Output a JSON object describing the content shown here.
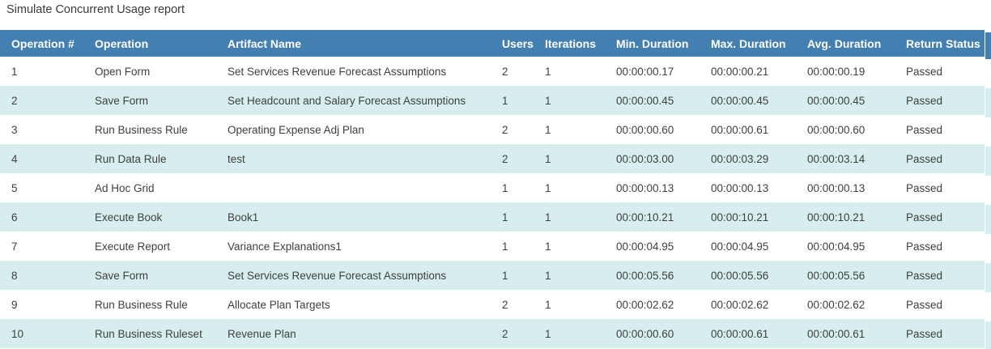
{
  "title": "Simulate Concurrent Usage report",
  "colors": {
    "header_background": "#4380b1",
    "header_text": "#ffffff",
    "row_stripe": "#d8edee",
    "row_plain": "#ffffff",
    "cell_text": "#3f3f3f",
    "title_text": "#3b3b3b"
  },
  "table": {
    "columns": [
      "Operation #",
      "Operation",
      "Artifact Name",
      "Users",
      "Iterations",
      "Min. Duration",
      "Max. Duration",
      "Avg. Duration",
      "Return Status"
    ],
    "rows": [
      [
        "1",
        "Open Form",
        "Set Services Revenue Forecast Assumptions",
        "2",
        "1",
        "00:00:00.17",
        "00:00:00.21",
        "00:00:00.19",
        "Passed"
      ],
      [
        "2",
        "Save Form",
        "Set Headcount and Salary Forecast Assumptions",
        "1",
        "1",
        "00:00:00.45",
        "00:00:00.45",
        "00:00:00.45",
        "Passed"
      ],
      [
        "3",
        "Run Business Rule",
        "Operating Expense Adj Plan",
        "2",
        "1",
        "00:00:00.60",
        "00:00:00.61",
        "00:00:00.60",
        "Passed"
      ],
      [
        "4",
        "Run Data Rule",
        "test",
        "2",
        "1",
        "00:00:03.00",
        "00:00:03.29",
        "00:00:03.14",
        "Passed"
      ],
      [
        "5",
        "Ad Hoc Grid",
        "",
        "1",
        "1",
        "00:00:00.13",
        "00:00:00.13",
        "00:00:00.13",
        "Passed"
      ],
      [
        "6",
        "Execute Book",
        "Book1",
        "1",
        "1",
        "00:00:10.21",
        "00:00:10.21",
        "00:00:10.21",
        "Passed"
      ],
      [
        "7",
        "Execute Report",
        "Variance Explanations1",
        "1",
        "1",
        "00:00:04.95",
        "00:00:04.95",
        "00:00:04.95",
        "Passed"
      ],
      [
        "8",
        "Save Form",
        "Set Services Revenue Forecast Assumptions",
        "1",
        "1",
        "00:00:05.56",
        "00:00:05.56",
        "00:00:05.56",
        "Passed"
      ],
      [
        "9",
        "Run Business Rule",
        "Allocate Plan Targets",
        "2",
        "1",
        "00:00:02.62",
        "00:00:02.62",
        "00:00:02.62",
        "Passed"
      ],
      [
        "10",
        "Run Business Ruleset",
        "Revenue Plan",
        "2",
        "1",
        "00:00:00.60",
        "00:00:00.61",
        "00:00:00.61",
        "Passed"
      ]
    ]
  }
}
